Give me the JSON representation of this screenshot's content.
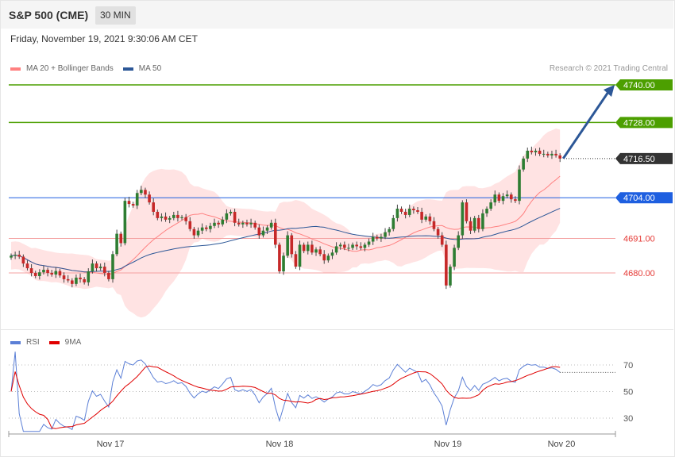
{
  "header": {
    "title": "S&P 500 (CME)",
    "timeframe": "30 MIN"
  },
  "date": "Friday, November 19, 2021 9:30:06 AM CET",
  "legend": {
    "ma20": {
      "label": "MA 20 + Bollinger Bands",
      "color": "#ff8080"
    },
    "ma50": {
      "label": "MA 50",
      "color": "#2c5797"
    }
  },
  "credit": "Research © 2021 Trading Central",
  "rsi_legend": {
    "rsi": {
      "label": "RSI",
      "color": "#5b7fd6"
    },
    "ma9": {
      "label": "9MA",
      "color": "#e00000"
    }
  },
  "chart_data": [
    {
      "type": "candlestick",
      "timeframe": "30 MIN",
      "x_labels": [
        "Nov 17",
        "Nov 18",
        "Nov 19",
        "Nov 20"
      ],
      "price_range": [
        4672,
        4742
      ],
      "levels": [
        {
          "value": 4740.0,
          "label": "4740.00",
          "role": "target",
          "color": "#4c9f00"
        },
        {
          "value": 4728.0,
          "label": "4728.00",
          "role": "resistance",
          "color": "#4c9f00"
        },
        {
          "value": 4716.5,
          "label": "4716.50",
          "role": "last price",
          "color": "#333333"
        },
        {
          "value": 4704.0,
          "label": "4704.00",
          "role": "pivot",
          "color": "#1e5fe0"
        },
        {
          "value": 4691.0,
          "label": "4691.00",
          "role": "support",
          "color": "#e53935"
        },
        {
          "value": 4680.0,
          "label": "4680.00",
          "role": "support",
          "color": "#e53935"
        }
      ],
      "arrow": {
        "from": 4716.5,
        "to": 4740.0,
        "color": "#2c5797"
      },
      "closes": [
        4685.5,
        4685.8,
        4685.2,
        4683.0,
        4681.5,
        4680.0,
        4679.0,
        4680.2,
        4681.0,
        4680.0,
        4679.5,
        4680.6,
        4679.2,
        4678.0,
        4677.6,
        4676.5,
        4678.5,
        4678.0,
        4677.0,
        4680.5,
        4683.0,
        4681.5,
        4682.0,
        4680.0,
        4678.0,
        4686.0,
        4692.5,
        4689.5,
        4703.0,
        4702.0,
        4701.5,
        4705.5,
        4706.5,
        4705.0,
        4702.5,
        4699.5,
        4697.5,
        4698.0,
        4697.0,
        4697.5,
        4698.5,
        4697.5,
        4697.8,
        4696.5,
        4694.0,
        4692.0,
        4693.5,
        4694.5,
        4694.0,
        4695.0,
        4696.0,
        4695.5,
        4697.0,
        4699.0,
        4699.5,
        4696.0,
        4695.5,
        4696.0,
        4695.5,
        4696.0,
        4694.5,
        4692.0,
        4693.5,
        4694.5,
        4696.0,
        4689.0,
        4680.5,
        4685.5,
        4692.0,
        4686.0,
        4682.0,
        4689.0,
        4687.0,
        4689.0,
        4686.5,
        4687.5,
        4686.0,
        4684.0,
        4685.5,
        4686.5,
        4688.5,
        4689.0,
        4688.0,
        4688.0,
        4689.0,
        4688.5,
        4688.0,
        4689.0,
        4690.0,
        4691.5,
        4691.0,
        4691.5,
        4693.0,
        4694.0,
        4697.5,
        4700.5,
        4699.5,
        4698.5,
        4700.5,
        4700.0,
        4699.5,
        4697.0,
        4698.0,
        4696.5,
        4694.0,
        4692.0,
        4689.0,
        4676.0,
        4682.0,
        4688.0,
        4692.0,
        4702.5,
        4696.5,
        4693.5,
        4697.5,
        4694.0,
        4699.0,
        4700.5,
        4702.5,
        4705.0,
        4703.0,
        4704.5,
        4705.0,
        4703.5,
        4703.0,
        4713.0,
        4716.5,
        4719.0,
        4718.5,
        4719.0,
        4718.0,
        4718.0,
        4717.5,
        4718.0,
        4717.5,
        4716.5
      ],
      "rsi": {
        "levels": [
          70,
          50,
          30
        ],
        "range": [
          18,
          82
        ]
      }
    }
  ]
}
